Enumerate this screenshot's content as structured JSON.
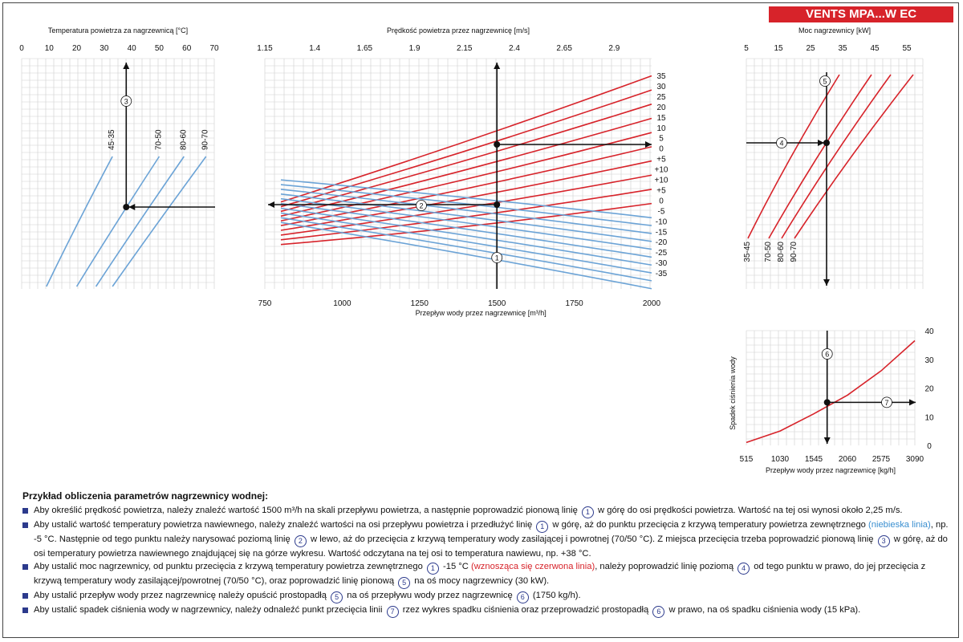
{
  "brand": "VENTS MPA...W EC",
  "colors": {
    "red": "#d7232a",
    "blue": "#6ba3d6",
    "grid": "#cfcfcf",
    "accent": "#2c3a8c"
  },
  "chart_data": [
    {
      "id": "supply-air-temperature",
      "type": "line",
      "xlabel_top": "Temperatura powietrza za nagrzewnicą [°C]",
      "x_ticks": [
        "0",
        "10",
        "20",
        "30",
        "40",
        "50",
        "60",
        "70"
      ],
      "xlim": [
        0,
        70
      ],
      "series": [
        {
          "name": "45-35",
          "x": [
            9,
            33
          ],
          "y": [
            0,
            1
          ]
        },
        {
          "name": "70-50",
          "x": [
            20,
            50
          ],
          "y": [
            0,
            1
          ]
        },
        {
          "name": "80-60",
          "x": [
            27,
            59
          ],
          "y": [
            0,
            1
          ]
        },
        {
          "name": "90-70",
          "x": [
            33,
            67
          ],
          "y": [
            0,
            1
          ]
        }
      ],
      "marker": {
        "x": 38,
        "label": "3"
      }
    },
    {
      "id": "main-air-flow",
      "type": "line",
      "xlabel_top": "Prędkość powietrza przez nagrzewnicę  [m/s]",
      "top_ticks": [
        "1.15",
        "1.4",
        "1.65",
        "1.9",
        "2.15",
        "2.4",
        "2.65",
        "2.9"
      ],
      "xlabel_bottom": "Przepływ wody przez nagrzewnicę [m³/h]",
      "bottom_ticks": [
        "750",
        "1000",
        "1250",
        "1500",
        "1750",
        "2000"
      ],
      "xlim": [
        750,
        2000
      ],
      "red_series": [
        {
          "name": "-35",
          "y": [
            -5.0,
            35.0
          ]
        },
        {
          "name": "-30",
          "y": [
            -6.5,
            30.5
          ]
        },
        {
          "name": "-25",
          "y": [
            -8.0,
            26.0
          ]
        },
        {
          "name": "-20",
          "y": [
            -9.5,
            21.5
          ]
        },
        {
          "name": "-15",
          "y": [
            -11.0,
            17.0
          ]
        },
        {
          "name": "-10",
          "y": [
            -12.5,
            12.5
          ]
        },
        {
          "name": "-5",
          "y": [
            -14.0,
            8.0
          ]
        },
        {
          "name": "0",
          "y": [
            -15.5,
            3.5
          ]
        },
        {
          "name": "+5",
          "y": [
            -17.0,
            -1.0
          ]
        },
        {
          "name": "+10",
          "y": [
            -18.5,
            -5.5
          ]
        }
      ],
      "blue_series": [
        {
          "name": "+10",
          "y": [
            2.0,
            -10.0
          ]
        },
        {
          "name": "+5",
          "y": [
            0.5,
            -12.5
          ]
        },
        {
          "name": "0",
          "y": [
            -1.0,
            -15.0
          ]
        },
        {
          "name": "-5",
          "y": [
            -2.5,
            -17.5
          ]
        },
        {
          "name": "-10",
          "y": [
            -4.0,
            -20.0
          ]
        },
        {
          "name": "-15",
          "y": [
            -5.5,
            -22.5
          ]
        },
        {
          "name": "-20",
          "y": [
            -7.0,
            -25.0
          ]
        },
        {
          "name": "-25",
          "y": [
            -8.5,
            -27.5
          ]
        },
        {
          "name": "-30",
          "y": [
            -10.0,
            -30.0
          ]
        },
        {
          "name": "-35",
          "y": [
            -11.5,
            -32.5
          ]
        }
      ],
      "right_labels": [
        "35",
        "30",
        "25",
        "20",
        "15",
        "10",
        "5",
        "0",
        "+5",
        "+10",
        "+10",
        "+5",
        "0",
        "-5",
        "-10",
        "-15",
        "-20",
        "-25",
        "-30",
        "-35"
      ],
      "markers": {
        "vertical_x": 1500,
        "marker1": "1",
        "marker2": "2"
      }
    },
    {
      "id": "heater-power",
      "type": "line",
      "xlabel_top": "Moc nagrzewnicy [kW]",
      "x_ticks": [
        "5",
        "15",
        "25",
        "35",
        "45",
        "55"
      ],
      "xlim": [
        5,
        60
      ],
      "series": [
        {
          "name": "35-45",
          "x": [
            5.5,
            34
          ],
          "y": [
            0,
            1
          ]
        },
        {
          "name": "70-50",
          "x": [
            12,
            44
          ],
          "y": [
            0,
            1
          ]
        },
        {
          "name": "80-60",
          "x": [
            16,
            50
          ],
          "y": [
            0,
            1
          ]
        },
        {
          "name": "90-70",
          "x": [
            20,
            57
          ],
          "y": [
            0,
            1
          ]
        }
      ],
      "marker": {
        "x": 30,
        "label4": "4",
        "label5": "5"
      }
    },
    {
      "id": "water-pressure-drop",
      "type": "line",
      "ylabel": "Spadek ciśnienia wody",
      "xlabel_bottom": "Przepływ wody przez nagrzewnicę [kg/h]",
      "x_ticks": [
        "515",
        "1030",
        "1545",
        "2060",
        "2575",
        "3090"
      ],
      "y_ticks": [
        "0",
        "10",
        "20",
        "30",
        "40"
      ],
      "xlim": [
        515,
        3090
      ],
      "ylim": [
        0,
        40
      ],
      "series": [
        {
          "name": "",
          "x": [
            515,
            1030,
            1545,
            2060,
            2575,
            3090
          ],
          "y": [
            1.0,
            5.0,
            11.0,
            17.5,
            26.0,
            36.5
          ]
        }
      ],
      "marker": {
        "x": 1750,
        "y": 15,
        "label6": "6",
        "label7": "7"
      }
    }
  ],
  "notes": {
    "title": "Przykład obliczenia parametrów nagrzewnicy wodnej:",
    "items": [
      {
        "a": "Aby określić prędkość powietrza, należy znaleźć wartość 1500 m³/h na skali przepływu powietrza, a następnie poprowadzić pionową linię",
        "c1": "1",
        "b": "w górę do osi prędkości powietrza. Wartość na tej osi wynosi około 2,25 m/s."
      },
      {
        "a": "Aby ustalić wartość temperatury powietrza nawiewnego, należy znaleźć wartości na osi przepływu powietrza i przedłużyć linię",
        "c1": "1",
        "b": "w górę, aż do punktu przecięcia z krzywą temperatury powietrza zewnętrznego",
        "blue": "(niebieska linia)",
        "c": ", np. -5 °C. Następnie od tego punktu należy narysować poziomą linię",
        "c2": "2",
        "d": "w lewo, aż do przecięcia z krzywą temperatury wody zasilającej i powrotnej (70/50 °C). Z miejsca przecięcia trzeba poprowadzić pionową linię",
        "c3": "3",
        "e": "w górę, aż do osi temperatury powietrza nawiewnego znajdującej się na górze wykresu. Wartość odczytana na tej osi to temperatura nawiewu, np. +38 °C."
      },
      {
        "a": "Aby ustalić moc nagrzewnicy, od punktu przecięcia z krzywą temperatury powietrza zewnętrznego",
        "c1": "1",
        "b": "-15 °C",
        "red": "(wznosząca się czerwona linia)",
        "c": ", należy poprowadzić linię poziomą",
        "c4": "4",
        "d": "od tego punktu w prawo, do jej przecięcia z krzywą temperatury wody zasilającej/powrotnej (70/50 °C), oraz poprowadzić linię pionową",
        "c5": "5",
        "e": "na oś mocy nagrzewnicy (30 kW)."
      },
      {
        "a": "Aby ustalić przepływ wody przez nagrzewnicę należy opuścić prostopadłą",
        "c5": "5",
        "b": "na oś przepływu wody przez nagrzewnicę",
        "c6": "6",
        "c": "(1750 kg/h)."
      },
      {
        "a": "Aby ustalić spadek ciśnienia wody w nagrzewnicy, należy odnaleźć punkt przecięcia linii",
        "c7": "7",
        "b": "rzez wykres spadku ciśnienia oraz przeprowadzić prostopadłą",
        "c6": "6",
        "c": "w prawo, na oś spadku ciśnienia wody (15 kPa)."
      }
    ]
  }
}
